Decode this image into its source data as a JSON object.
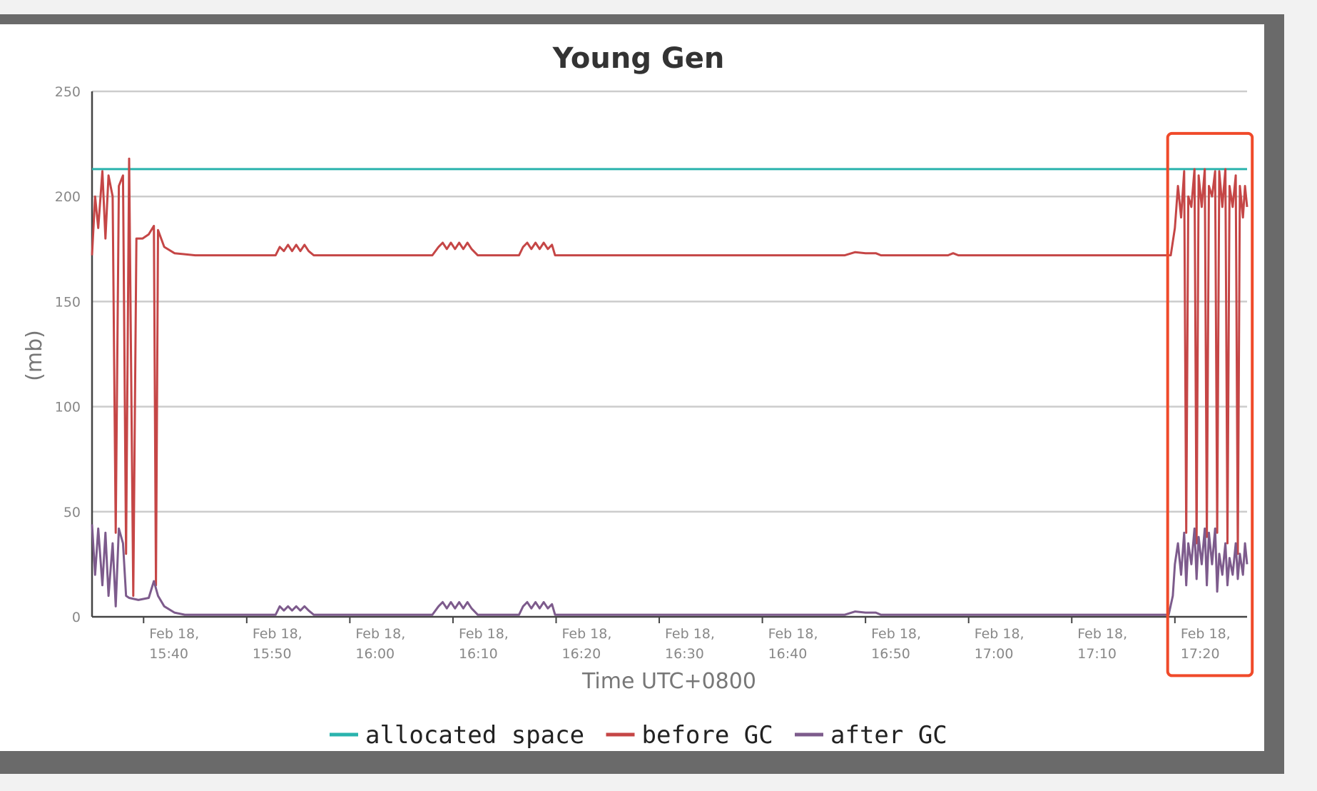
{
  "chart_data": {
    "type": "line",
    "title": "Young Gen",
    "xlabel": "Time UTC+0800",
    "ylabel": "(mb)",
    "ylim": [
      0,
      250
    ],
    "y_ticks": [
      "0",
      "50",
      "100",
      "150",
      "200",
      "250"
    ],
    "x_range": [
      "15:35",
      "17:27"
    ],
    "x_ticks": [
      {
        "date": "Feb 18,",
        "time": "15:40"
      },
      {
        "date": "Feb 18,",
        "time": "15:50"
      },
      {
        "date": "Feb 18,",
        "time": "16:00"
      },
      {
        "date": "Feb 18,",
        "time": "16:10"
      },
      {
        "date": "Feb 18,",
        "time": "16:20"
      },
      {
        "date": "Feb 18,",
        "time": "16:30"
      },
      {
        "date": "Feb 18,",
        "time": "16:40"
      },
      {
        "date": "Feb 18,",
        "time": "16:50"
      },
      {
        "date": "Feb 18,",
        "time": "17:00"
      },
      {
        "date": "Feb 18,",
        "time": "17:10"
      },
      {
        "date": "Feb 18,",
        "time": "17:20"
      }
    ],
    "grid": true,
    "legend": "bottom-center",
    "series": [
      {
        "name": "allocated space",
        "color": "#2ab3ad",
        "points": [
          [
            "15:35",
            213
          ],
          [
            "17:27",
            213
          ]
        ]
      },
      {
        "name": "before GC",
        "color": "#c54646",
        "points": [
          [
            "15:35",
            172
          ],
          [
            "15:35.3",
            200
          ],
          [
            "15:35.6",
            185
          ],
          [
            "15:36",
            212
          ],
          [
            "15:36.3",
            180
          ],
          [
            "15:36.6",
            210
          ],
          [
            "15:37",
            200
          ],
          [
            "15:37.3",
            40
          ],
          [
            "15:37.6",
            205
          ],
          [
            "15:38",
            210
          ],
          [
            "15:38.3",
            30
          ],
          [
            "15:38.6",
            218
          ],
          [
            "15:39",
            10
          ],
          [
            "15:39.3",
            180
          ],
          [
            "15:39.9",
            180
          ],
          [
            "15:40.5",
            182
          ],
          [
            "15:41",
            186
          ],
          [
            "15:41.2",
            15
          ],
          [
            "15:41.4",
            184
          ],
          [
            "15:42",
            176
          ],
          [
            "15:43",
            173
          ],
          [
            "15:45",
            172
          ],
          [
            "15:52",
            172
          ],
          [
            "15:52.8",
            172
          ],
          [
            "15:53.2",
            176
          ],
          [
            "15:53.6",
            174
          ],
          [
            "15:54",
            177
          ],
          [
            "15:54.4",
            174
          ],
          [
            "15:54.8",
            177
          ],
          [
            "15:55.2",
            174
          ],
          [
            "15:55.6",
            177
          ],
          [
            "15:56",
            174
          ],
          [
            "15:56.5",
            172
          ],
          [
            "16:08",
            172
          ],
          [
            "16:08.6",
            176
          ],
          [
            "16:09",
            178
          ],
          [
            "16:09.4",
            175
          ],
          [
            "16:09.8",
            178
          ],
          [
            "16:10.2",
            175
          ],
          [
            "16:10.6",
            178
          ],
          [
            "16:11",
            175
          ],
          [
            "16:11.4",
            178
          ],
          [
            "16:11.8",
            175
          ],
          [
            "16:12.4",
            172
          ],
          [
            "16:16.4",
            172
          ],
          [
            "16:16.8",
            176
          ],
          [
            "16:17.2",
            178
          ],
          [
            "16:17.6",
            175
          ],
          [
            "16:18",
            178
          ],
          [
            "16:18.4",
            175
          ],
          [
            "16:18.8",
            178
          ],
          [
            "16:19.2",
            175
          ],
          [
            "16:19.6",
            177
          ],
          [
            "16:19.9",
            172
          ],
          [
            "16:48",
            172
          ],
          [
            "16:49",
            173.5
          ],
          [
            "16:50",
            173
          ],
          [
            "16:51",
            173
          ],
          [
            "16:51.5",
            172
          ],
          [
            "16:58",
            172
          ],
          [
            "16:58.5",
            173
          ],
          [
            "16:59",
            172
          ],
          [
            "17:19.6",
            172
          ],
          [
            "17:20",
            185
          ],
          [
            "17:20.3",
            205
          ],
          [
            "17:20.6",
            190
          ],
          [
            "17:20.9",
            212
          ],
          [
            "17:21.1",
            40
          ],
          [
            "17:21.3",
            200
          ],
          [
            "17:21.6",
            195
          ],
          [
            "17:21.9",
            213
          ],
          [
            "17:22.1",
            35
          ],
          [
            "17:22.3",
            210
          ],
          [
            "17:22.6",
            195
          ],
          [
            "17:22.9",
            213
          ],
          [
            "17:23.1",
            38
          ],
          [
            "17:23.3",
            205
          ],
          [
            "17:23.6",
            200
          ],
          [
            "17:23.9",
            212
          ],
          [
            "17:24.1",
            40
          ],
          [
            "17:24.3",
            212
          ],
          [
            "17:24.6",
            195
          ],
          [
            "17:24.9",
            213
          ],
          [
            "17:25.1",
            35
          ],
          [
            "17:25.3",
            205
          ],
          [
            "17:25.6",
            195
          ],
          [
            "17:25.9",
            210
          ],
          [
            "17:26.1",
            30
          ],
          [
            "17:26.3",
            205
          ],
          [
            "17:26.6",
            190
          ],
          [
            "17:26.8",
            205
          ],
          [
            "17:27",
            195
          ]
        ]
      },
      {
        "name": "after GC",
        "color": "#7d5b8c",
        "points": [
          [
            "15:35",
            44
          ],
          [
            "15:35.3",
            20
          ],
          [
            "15:35.6",
            42
          ],
          [
            "15:36",
            15
          ],
          [
            "15:36.3",
            40
          ],
          [
            "15:36.6",
            10
          ],
          [
            "15:37",
            35
          ],
          [
            "15:37.3",
            5
          ],
          [
            "15:37.6",
            42
          ],
          [
            "15:38",
            35
          ],
          [
            "15:38.3",
            10
          ],
          [
            "15:38.6",
            9
          ],
          [
            "15:39.5",
            8
          ],
          [
            "15:40.5",
            9
          ],
          [
            "15:41",
            17
          ],
          [
            "15:41.4",
            10
          ],
          [
            "15:42",
            5
          ],
          [
            "15:43",
            2
          ],
          [
            "15:44",
            1
          ],
          [
            "15:52.8",
            1
          ],
          [
            "15:53.2",
            5
          ],
          [
            "15:53.6",
            3
          ],
          [
            "15:54",
            5
          ],
          [
            "15:54.4",
            3
          ],
          [
            "15:54.8",
            5
          ],
          [
            "15:55.2",
            3
          ],
          [
            "15:55.6",
            5
          ],
          [
            "15:56",
            3
          ],
          [
            "15:56.5",
            1
          ],
          [
            "16:08",
            1
          ],
          [
            "16:08.6",
            5
          ],
          [
            "16:09",
            7
          ],
          [
            "16:09.4",
            4
          ],
          [
            "16:09.8",
            7
          ],
          [
            "16:10.2",
            4
          ],
          [
            "16:10.6",
            7
          ],
          [
            "16:11",
            4
          ],
          [
            "16:11.4",
            7
          ],
          [
            "16:11.8",
            4
          ],
          [
            "16:12.4",
            1
          ],
          [
            "16:16.4",
            1
          ],
          [
            "16:16.8",
            5
          ],
          [
            "16:17.2",
            7
          ],
          [
            "16:17.6",
            4
          ],
          [
            "16:18",
            7
          ],
          [
            "16:18.4",
            4
          ],
          [
            "16:18.8",
            7
          ],
          [
            "16:19.2",
            4
          ],
          [
            "16:19.6",
            6
          ],
          [
            "16:19.9",
            1
          ],
          [
            "16:48",
            1
          ],
          [
            "16:49",
            2.5
          ],
          [
            "16:50",
            2
          ],
          [
            "16:51",
            2
          ],
          [
            "16:51.5",
            1
          ],
          [
            "17:19.4",
            1
          ],
          [
            "17:19.8",
            10
          ],
          [
            "17:20",
            25
          ],
          [
            "17:20.3",
            35
          ],
          [
            "17:20.6",
            20
          ],
          [
            "17:20.9",
            40
          ],
          [
            "17:21.1",
            15
          ],
          [
            "17:21.3",
            35
          ],
          [
            "17:21.6",
            25
          ],
          [
            "17:21.9",
            42
          ],
          [
            "17:22.1",
            18
          ],
          [
            "17:22.3",
            38
          ],
          [
            "17:22.6",
            25
          ],
          [
            "17:22.9",
            42
          ],
          [
            "17:23.1",
            15
          ],
          [
            "17:23.3",
            40
          ],
          [
            "17:23.6",
            25
          ],
          [
            "17:23.9",
            42
          ],
          [
            "17:24.1",
            12
          ],
          [
            "17:24.3",
            30
          ],
          [
            "17:24.6",
            20
          ],
          [
            "17:24.9",
            35
          ],
          [
            "17:25.1",
            15
          ],
          [
            "17:25.3",
            28
          ],
          [
            "17:25.6",
            20
          ],
          [
            "17:25.9",
            35
          ],
          [
            "17:26.1",
            18
          ],
          [
            "17:26.3",
            30
          ],
          [
            "17:26.6",
            20
          ],
          [
            "17:26.8",
            35
          ],
          [
            "17:27",
            25
          ]
        ]
      }
    ],
    "annotations": [
      {
        "type": "box",
        "color": "#f04a2a",
        "x_from": "17:19.3",
        "x_to": "17:27.5",
        "y_from": -28,
        "y_to": 230
      }
    ]
  }
}
